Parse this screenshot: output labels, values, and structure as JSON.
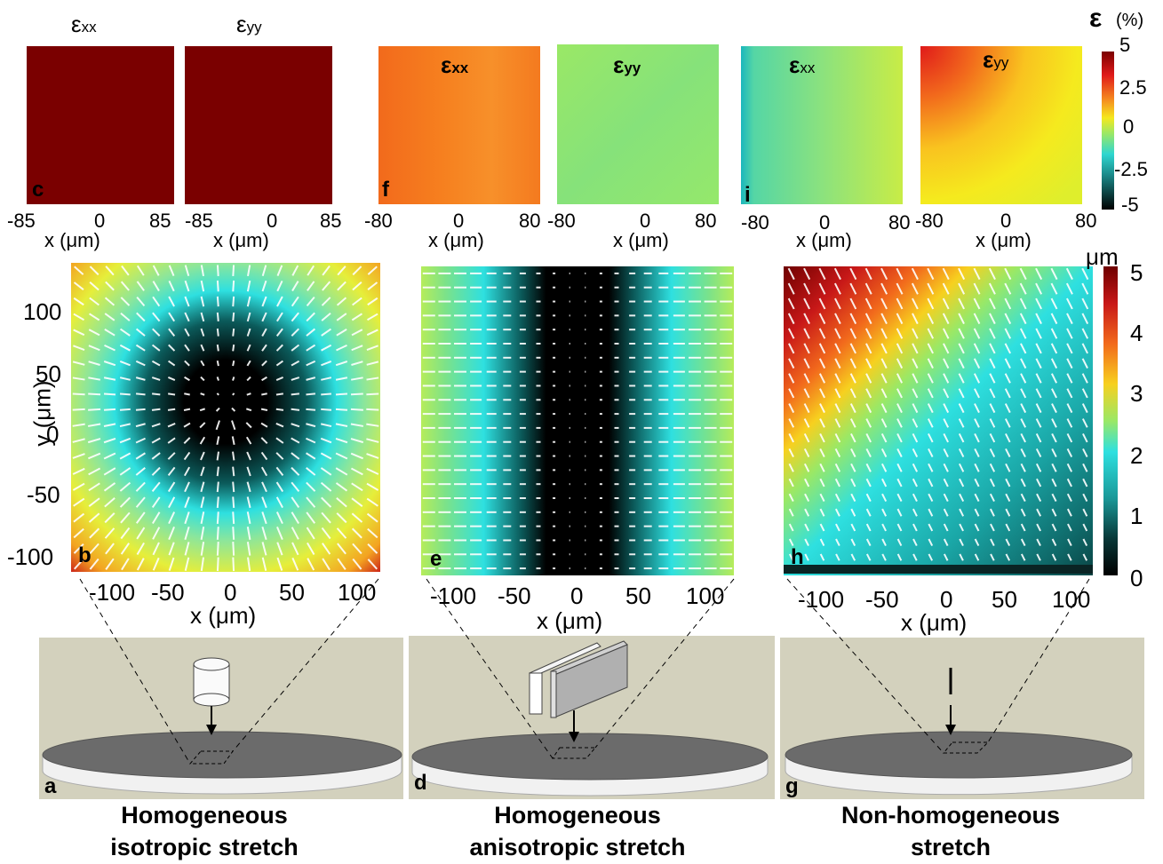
{
  "strain_panels": [
    {
      "id": "c",
      "top_label_main": "ε",
      "top_label_sub": "xx",
      "bold": false,
      "x_ticks": [
        "-85",
        "0",
        "85"
      ],
      "xlabel": "x (μm)"
    },
    {
      "id": "",
      "top_label_main": "ε",
      "top_label_sub": "yy",
      "bold": false,
      "x_ticks": [
        "-85",
        "0",
        "85"
      ],
      "xlabel": "x (μm)"
    },
    {
      "id": "f",
      "top_label_main": "ε",
      "top_label_sub": "xx",
      "bold": true,
      "x_ticks": [
        "-80",
        "0",
        "80"
      ],
      "xlabel": "x (μm)"
    },
    {
      "id": "",
      "top_label_main": "ε",
      "top_label_sub": "yy",
      "bold": true,
      "x_ticks": [
        "-80",
        "0",
        "80"
      ],
      "xlabel": "x (μm)"
    },
    {
      "id": "i",
      "top_label_main": "ε",
      "top_label_sub": "xx",
      "bold": false,
      "x_ticks": [
        "-80",
        "0",
        "80"
      ],
      "xlabel": "x (μm)"
    },
    {
      "id": "",
      "top_label_main": "ε",
      "top_label_sub": "yy",
      "bold": false,
      "x_ticks": [
        "-80",
        "0",
        "80"
      ],
      "xlabel": "x (μm)"
    }
  ],
  "strain_colorbar": {
    "title_symbol": "ε",
    "title_unit": "(%)",
    "ticks": [
      "5",
      "2.5",
      "0",
      "-2.5",
      "-5"
    ]
  },
  "disp_colorbar": {
    "title": "μm",
    "ticks": [
      "5",
      "4",
      "3",
      "2",
      "1",
      "0"
    ]
  },
  "disp_panels": [
    {
      "id": "b",
      "x_ticks": [
        "-100",
        "-50",
        "0",
        "50",
        "100"
      ],
      "xlabel": "x (μm)",
      "y_ticks": [
        "100",
        "50",
        "0",
        "-50",
        "-100"
      ],
      "ylabel": "y (μm)"
    },
    {
      "id": "e",
      "x_ticks": [
        "-100",
        "-50",
        "0",
        "50",
        "100"
      ],
      "xlabel": "x (μm)"
    },
    {
      "id": "h",
      "x_ticks": [
        "-100",
        "-50",
        "0",
        "50",
        "100"
      ],
      "xlabel": "x (μm)"
    }
  ],
  "setup_panels": [
    {
      "id": "a",
      "caption_line1": "Homogeneous",
      "caption_line2": "isotropic stretch"
    },
    {
      "id": "d",
      "caption_line1": "Homogeneous",
      "caption_line2": "anisotropic stretch"
    },
    {
      "id": "g",
      "caption_line1": "Non-homogeneous",
      "caption_line2": "stretch"
    }
  ],
  "colors": {
    "uniform_strain": "#7a0000",
    "setup_background": "#d3d1bd",
    "disk_top": "#6b6b6b",
    "disk_side": "#f0f0f0"
  }
}
